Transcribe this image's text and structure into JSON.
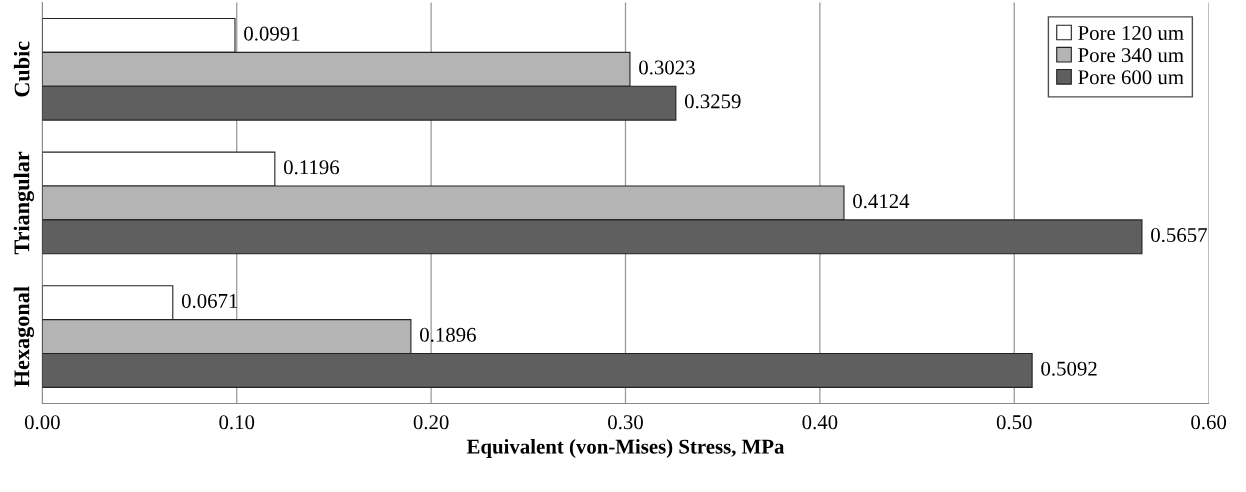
{
  "chart_data": {
    "type": "bar",
    "orientation": "horizontal",
    "xlabel": "Equivalent (von-Mises) Stress, MPa",
    "categories": [
      "Cubic",
      "Triangular",
      "Hexagonal"
    ],
    "series": [
      {
        "name": "Pore 120 um",
        "color": "#ffffff",
        "values": [
          0.0991,
          0.1196,
          0.0671
        ]
      },
      {
        "name": "Pore 340 um",
        "color": "#b4b4b4",
        "values": [
          0.3023,
          0.4124,
          0.1896
        ]
      },
      {
        "name": "Pore 600 um",
        "color": "#5f5f5f",
        "values": [
          0.3259,
          0.5657,
          0.5092
        ]
      }
    ],
    "xlim": [
      0,
      0.6
    ],
    "xticks": [
      {
        "value": 0,
        "label": "0.00"
      },
      {
        "value": 0.1,
        "label": "0.10"
      },
      {
        "value": 0.2,
        "label": "0.20"
      },
      {
        "value": 0.3,
        "label": "0.30"
      },
      {
        "value": 0.4,
        "label": "0.40"
      },
      {
        "value": 0.5,
        "label": "0.50"
      },
      {
        "value": 0.6,
        "label": "0.60"
      }
    ],
    "grid": "x",
    "legend": "top right",
    "data_labels": true
  }
}
